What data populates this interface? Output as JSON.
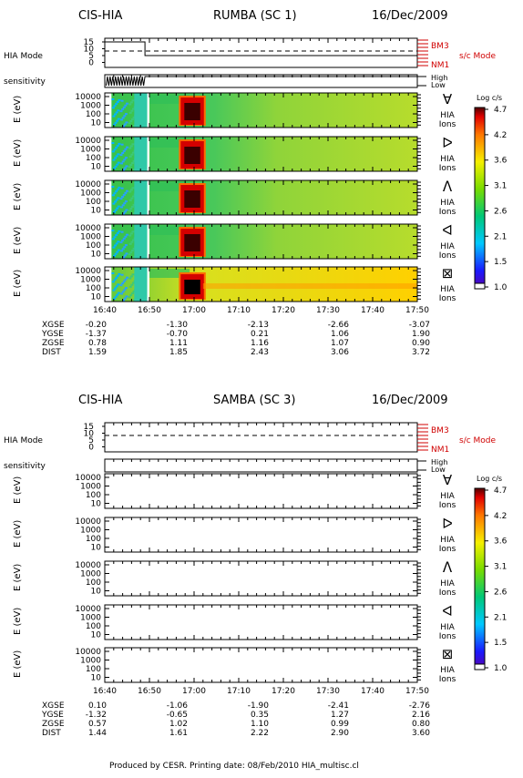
{
  "blocks": [
    {
      "instrument": "CIS-HIA",
      "spacecraft": "RUMBA (SC 1)",
      "date": "16/Dec/2009",
      "has_data": true,
      "mode_label": "HIA Mode",
      "mode_ticks": [
        "15",
        "10",
        "5",
        "0"
      ],
      "mode_right_top": "BM3",
      "mode_right_bottom": "NM1",
      "sc_mode_label": "s/c Mode",
      "sensitivity_label": "sensitivity",
      "sens_high": "High",
      "sens_low": "Low",
      "ephem": {
        "rows": [
          "XGSE",
          "YGSE",
          "ZGSE",
          "DIST"
        ],
        "values": [
          [
            "-0.20",
            "-1.30",
            "-2.13",
            "-2.66",
            "-3.07"
          ],
          [
            "-1.37",
            "-0.70",
            "0.21",
            "1.06",
            "1.90"
          ],
          [
            "0.78",
            "1.11",
            "1.16",
            "1.07",
            "0.90"
          ],
          [
            "1.59",
            "1.85",
            "2.43",
            "3.06",
            "3.72"
          ]
        ]
      }
    },
    {
      "instrument": "CIS-HIA",
      "spacecraft": "SAMBA (SC 3)",
      "date": "16/Dec/2009",
      "has_data": false,
      "mode_label": "HIA Mode",
      "mode_ticks": [
        "15",
        "10",
        "5",
        "0"
      ],
      "mode_right_top": "BM3",
      "mode_right_bottom": "NM1",
      "sc_mode_label": "s/c Mode",
      "sensitivity_label": "sensitivity",
      "sens_high": "High",
      "sens_low": "Low",
      "ephem": {
        "rows": [
          "XGSE",
          "YGSE",
          "ZGSE",
          "DIST"
        ],
        "values": [
          [
            "0.10",
            "-1.06",
            "-1.90",
            "-2.41",
            "-2.76"
          ],
          [
            "-1.32",
            "-0.65",
            "0.35",
            "1.27",
            "2.16"
          ],
          [
            "0.57",
            "1.02",
            "1.10",
            "0.99",
            "0.80"
          ],
          [
            "1.44",
            "1.61",
            "2.22",
            "2.90",
            "3.60"
          ]
        ]
      }
    }
  ],
  "panel_ylabel": "E (eV)",
  "energy_ticks": [
    "10000",
    "1000",
    "100",
    "10"
  ],
  "panel_right_label": "HIA",
  "panel_right_sublabel": "Ions",
  "direction_glyphs": [
    "∀",
    "ᐅ",
    "ᐱ",
    "ᐊ",
    "⊠"
  ],
  "colorbar": {
    "title": "Log c/s",
    "ticks": [
      "4.7",
      "4.2",
      "3.6",
      "3.1",
      "2.6",
      "2.1",
      "1.5",
      "1.0"
    ]
  },
  "time_ticks": [
    "16:40",
    "16:50",
    "17:00",
    "17:10",
    "17:20",
    "17:30",
    "17:40",
    "17:50"
  ],
  "footer": "Produced by CESR.   Printing date: 08/Feb/2010   HIA_multisc.cl",
  "chart_data": [
    {
      "type": "heatmap",
      "title": "CIS-HIA RUMBA (SC 1) 16/Dec/2009",
      "xlabel": "",
      "ylabel": "E (eV)",
      "x_range": [
        "16:40",
        "17:50"
      ],
      "y_scale": "log",
      "y_range": [
        5,
        30000
      ],
      "z_label": "Log c/s",
      "z_range": [
        1.0,
        4.7
      ],
      "panels": [
        "∀",
        "ᐅ",
        "ᐱ",
        "ᐊ",
        "⊠"
      ],
      "hia_mode": [
        {
          "start": "16:40",
          "end": "16:49",
          "value": 15
        },
        {
          "start": "16:49",
          "end": "17:50",
          "value": 5
        }
      ],
      "features": [
        {
          "start": "16:52",
          "end": "16:55",
          "band": "E < 300 eV",
          "log_cs": 2.2
        },
        {
          "start": "16:55",
          "end": "16:57",
          "band": "all energies",
          "log_cs": 3.1
        },
        {
          "start": "16:57",
          "end": "17:00",
          "band": "all energies",
          "log_cs": 3.0
        },
        {
          "start": "17:00",
          "end": "17:03",
          "band": "10-10000 eV",
          "log_cs": 4.6
        },
        {
          "start": "17:03",
          "end": "17:50",
          "band": "all energies",
          "log_cs": 3.2
        }
      ]
    },
    {
      "type": "heatmap",
      "title": "CIS-HIA SAMBA (SC 3) 16/Dec/2009",
      "xlabel": "",
      "ylabel": "E (eV)",
      "x_range": [
        "16:40",
        "17:50"
      ],
      "y_scale": "log",
      "z_label": "Log c/s",
      "z_range": [
        1.0,
        4.7
      ],
      "panels": [
        "∀",
        "ᐅ",
        "ᐱ",
        "ᐊ",
        "⊠"
      ],
      "hia_mode": [],
      "features": []
    }
  ]
}
